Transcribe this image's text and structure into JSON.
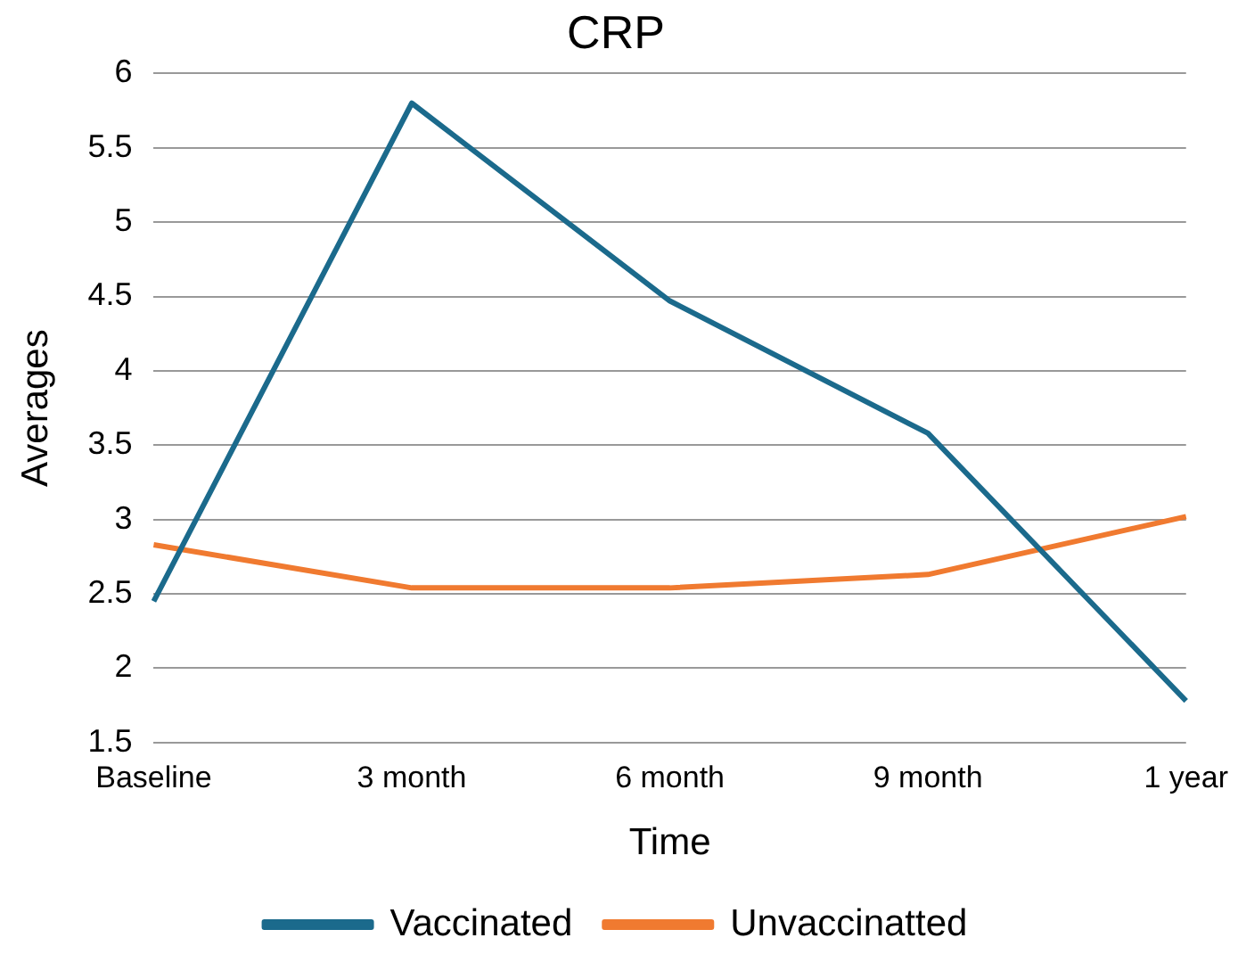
{
  "chart_data": {
    "type": "line",
    "title": "CRP",
    "xlabel": "Time",
    "ylabel": "Averages",
    "categories": [
      "Baseline",
      "3 month",
      "6 month",
      "9 month",
      "1 year"
    ],
    "series": [
      {
        "name": "Vaccinated",
        "color": "#1b6a8c",
        "values": [
          2.45,
          5.8,
          4.47,
          3.58,
          1.78
        ]
      },
      {
        "name": "Unvaccinatted",
        "color": "#f07a30",
        "values": [
          2.83,
          2.54,
          2.54,
          2.63,
          3.02
        ]
      }
    ],
    "ylim": [
      1.5,
      6
    ],
    "yticks": [
      1.5,
      2,
      2.5,
      3,
      3.5,
      4,
      4.5,
      5,
      5.5,
      6
    ],
    "grid": "y",
    "legend": "bottom",
    "marker": "none",
    "line_style": "solid"
  }
}
